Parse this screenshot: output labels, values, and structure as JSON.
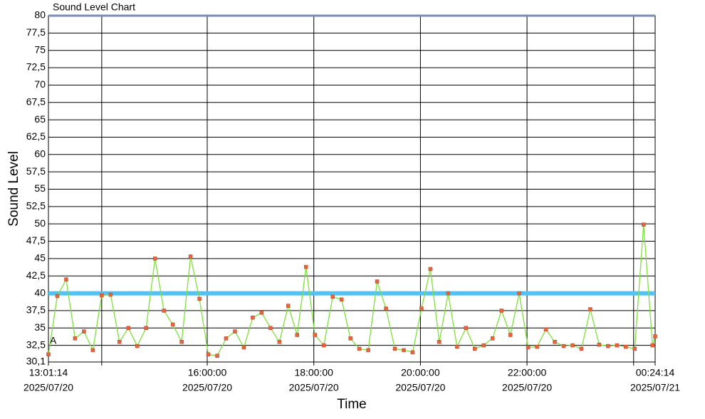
{
  "chart_data": {
    "type": "line",
    "title": "Sound Level Chart",
    "y_label": "Sound Level",
    "x_label": "Time",
    "annotations": [
      "A"
    ],
    "ylim": [
      30.1,
      80
    ],
    "yticks": [
      {
        "value": 30.1,
        "label": "30,1"
      },
      {
        "value": 32.5,
        "label": "32,5"
      },
      35,
      {
        "value": 37.5,
        "label": "37,5"
      },
      40,
      {
        "value": 42.5,
        "label": "42,5"
      },
      45,
      {
        "value": 47.5,
        "label": "47,5"
      },
      50,
      {
        "value": 52.5,
        "label": "52,5"
      },
      55,
      {
        "value": 57.5,
        "label": "57,5"
      },
      60,
      {
        "value": 62.5,
        "label": "62,5"
      },
      65,
      {
        "value": 67.5,
        "label": "67,5"
      },
      70,
      {
        "value": 72.5,
        "label": "72,5"
      },
      75,
      {
        "value": 77.5,
        "label": "77,5"
      },
      80
    ],
    "xlim": [
      "2025-07-20 13:01:14",
      "2025-07-21 00:24:14"
    ],
    "xticks": [
      {
        "value": "2025-07-20 13:01:14",
        "label": [
          "13:01:14",
          "2025/07/20"
        ]
      },
      {
        "value": "2025-07-20 14:01:14",
        "label": null
      },
      {
        "value": "2025-07-20 16:00:00",
        "label": [
          "16:00:00",
          "2025/07/20"
        ]
      },
      {
        "value": "2025-07-20 18:00:00",
        "label": [
          "18:00:00",
          "2025/07/20"
        ]
      },
      {
        "value": "2025-07-20 20:00:00",
        "label": [
          "20:00:00",
          "2025/07/20"
        ]
      },
      {
        "value": "2025-07-20 22:00:00",
        "label": [
          "22:00:00",
          "2025/07/20"
        ]
      },
      {
        "value": "2025-07-21 00:00:00",
        "label": null
      },
      {
        "value": "2025-07-21 00:24:14",
        "label": [
          "00:24:14",
          "2025/07/21"
        ]
      }
    ],
    "grid": true,
    "thresholds": [
      {
        "value": 40,
        "color": "#4fc3f7"
      },
      {
        "value": 80,
        "color": "#7a8bb5"
      }
    ],
    "x": [
      "2025-07-20 13:01:14",
      "2025-07-20 13:11:14",
      "2025-07-20 13:21:14",
      "2025-07-20 13:31:14",
      "2025-07-20 13:41:14",
      "2025-07-20 13:51:14",
      "2025-07-20 14:01:14",
      "2025-07-20 14:11:14",
      "2025-07-20 14:21:14",
      "2025-07-20 14:31:14",
      "2025-07-20 14:41:14",
      "2025-07-20 14:51:14",
      "2025-07-20 15:01:14",
      "2025-07-20 15:11:14",
      "2025-07-20 15:21:14",
      "2025-07-20 15:31:14",
      "2025-07-20 15:41:14",
      "2025-07-20 15:51:14",
      "2025-07-20 16:01:14",
      "2025-07-20 16:11:14",
      "2025-07-20 16:21:14",
      "2025-07-20 16:31:14",
      "2025-07-20 16:41:14",
      "2025-07-20 16:51:14",
      "2025-07-20 17:01:14",
      "2025-07-20 17:11:14",
      "2025-07-20 17:21:14",
      "2025-07-20 17:31:14",
      "2025-07-20 17:41:14",
      "2025-07-20 17:51:14",
      "2025-07-20 18:01:14",
      "2025-07-20 18:11:14",
      "2025-07-20 18:21:14",
      "2025-07-20 18:31:14",
      "2025-07-20 18:41:14",
      "2025-07-20 18:51:14",
      "2025-07-20 19:01:14",
      "2025-07-20 19:11:14",
      "2025-07-20 19:21:14",
      "2025-07-20 19:31:14",
      "2025-07-20 19:41:14",
      "2025-07-20 19:51:14",
      "2025-07-20 20:01:14",
      "2025-07-20 20:11:14",
      "2025-07-20 20:21:14",
      "2025-07-20 20:31:14",
      "2025-07-20 20:41:14",
      "2025-07-20 20:51:14",
      "2025-07-20 21:01:14",
      "2025-07-20 21:11:14",
      "2025-07-20 21:21:14",
      "2025-07-20 21:31:14",
      "2025-07-20 21:41:14",
      "2025-07-20 21:51:14",
      "2025-07-20 22:01:14",
      "2025-07-20 22:11:14",
      "2025-07-20 22:21:14",
      "2025-07-20 22:31:14",
      "2025-07-20 22:41:14",
      "2025-07-20 22:51:14",
      "2025-07-20 23:01:14",
      "2025-07-20 23:11:14",
      "2025-07-20 23:21:14",
      "2025-07-20 23:31:14",
      "2025-07-20 23:41:14",
      "2025-07-20 23:51:14",
      "2025-07-21 00:01:14",
      "2025-07-21 00:11:14",
      "2025-07-21 00:21:14",
      "2025-07-21 00:24:14"
    ],
    "series": [
      {
        "name": "Sound Level",
        "color": "#7fe03a",
        "marker_color": "#e8643c",
        "values": [
          31.2,
          39.6,
          42.0,
          33.5,
          34.5,
          31.8,
          39.7,
          39.8,
          33.0,
          35.0,
          32.4,
          35.0,
          45.0,
          37.5,
          35.5,
          33.0,
          45.3,
          39.2,
          31.2,
          31.0,
          33.5,
          34.5,
          32.2,
          36.5,
          37.2,
          35.0,
          33.0,
          38.2,
          34.0,
          43.8,
          34.0,
          32.5,
          39.5,
          39.1,
          33.5,
          32.0,
          31.8,
          41.7,
          37.8,
          32.0,
          31.8,
          31.5,
          37.8,
          43.5,
          33.0,
          40.0,
          32.3,
          35.0,
          32.0,
          32.5,
          33.5,
          37.5,
          34.0,
          40.0,
          32.2,
          32.3,
          34.8,
          33.0,
          32.4,
          32.5,
          32.0,
          37.7,
          32.6,
          32.4,
          32.5,
          32.3,
          32.0,
          49.9,
          32.5,
          33.8
        ]
      }
    ]
  }
}
